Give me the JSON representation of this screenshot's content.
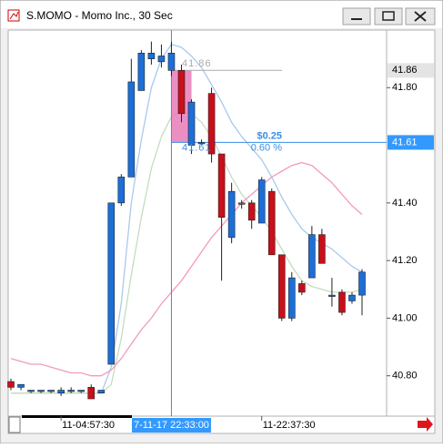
{
  "window_title": "S.MOMO - Momo Inc., 30 Sec",
  "chart_data": {
    "type": "candlestick",
    "categories": [
      null,
      null,
      null,
      null,
      null,
      "11-04:57:30",
      null,
      null,
      null,
      null,
      null,
      null,
      null,
      null,
      null,
      null,
      "7-11-17 22:33:00",
      null,
      null,
      null,
      null,
      null,
      null,
      null,
      null,
      "11-22:37:30",
      null,
      null,
      null,
      null,
      null,
      null,
      null,
      null,
      null,
      null
    ],
    "highlight_category": 16,
    "open": [
      40.78,
      40.76,
      40.75,
      40.75,
      40.75,
      40.74,
      40.75,
      40.75,
      40.76,
      40.74,
      40.84,
      41.4,
      41.49,
      41.79,
      41.9,
      41.89,
      41.86,
      41.86,
      41.6,
      41.61,
      41.78,
      41.57,
      41.28,
      41.4,
      41.4,
      41.33,
      41.44,
      41.22,
      41.0,
      41.12,
      41.14,
      41.29,
      41.08,
      41.09,
      41.06,
      41.08
    ],
    "high": [
      40.79,
      40.77,
      40.75,
      40.75,
      40.75,
      40.76,
      40.76,
      40.75,
      40.77,
      40.75,
      41.4,
      41.5,
      41.9,
      41.93,
      41.96,
      41.95,
      41.96,
      41.88,
      41.76,
      41.62,
      41.8,
      41.57,
      41.47,
      41.41,
      41.41,
      41.49,
      41.45,
      41.22,
      41.16,
      41.13,
      41.32,
      41.31,
      41.14,
      41.1,
      41.09,
      41.17
    ],
    "low": [
      40.75,
      40.75,
      40.74,
      40.74,
      40.74,
      40.73,
      40.74,
      40.74,
      40.72,
      40.74,
      40.84,
      41.39,
      41.49,
      41.79,
      41.88,
      41.87,
      41.84,
      41.68,
      41.57,
      41.6,
      41.54,
      41.13,
      41.26,
      41.38,
      41.31,
      41.33,
      41.22,
      40.99,
      40.99,
      41.08,
      41.14,
      41.19,
      41.04,
      41.01,
      41.05,
      41.01
    ],
    "close": [
      40.76,
      40.77,
      40.75,
      40.75,
      40.75,
      40.75,
      40.75,
      40.75,
      40.72,
      40.75,
      41.4,
      41.49,
      41.82,
      41.92,
      41.92,
      41.91,
      41.92,
      41.71,
      41.75,
      41.61,
      41.57,
      41.35,
      41.44,
      41.4,
      41.34,
      41.48,
      41.22,
      41.0,
      41.14,
      41.09,
      41.29,
      41.19,
      41.08,
      41.02,
      41.08,
      41.16
    ],
    "up_color": "#1d6fd8",
    "down_color": "#c8101a",
    "lines": [
      {
        "color": "#a9c9ee",
        "values": [
          40.74,
          40.74,
          40.74,
          40.74,
          40.74,
          40.74,
          40.74,
          40.74,
          40.74,
          40.74,
          40.83,
          41.05,
          41.4,
          41.62,
          41.8,
          41.9,
          41.95,
          41.94,
          41.91,
          41.87,
          41.81,
          41.75,
          41.68,
          41.63,
          41.59,
          41.55,
          41.49,
          41.42,
          41.36,
          41.31,
          41.28,
          41.26,
          41.24,
          41.21,
          41.18,
          41.16
        ]
      },
      {
        "color": "#c5dcc0",
        "values": [
          40.74,
          40.74,
          40.74,
          40.74,
          40.74,
          40.74,
          40.74,
          40.74,
          40.74,
          40.74,
          40.77,
          40.93,
          41.15,
          41.35,
          41.52,
          41.63,
          41.7,
          41.72,
          41.71,
          41.68,
          41.63,
          41.56,
          41.49,
          41.43,
          41.39,
          41.35,
          41.3,
          41.24,
          41.18,
          41.13,
          41.11,
          41.1,
          41.09,
          41.09,
          41.09,
          41.1
        ]
      },
      {
        "color": "#f29ac0",
        "values": [
          40.86,
          40.85,
          40.84,
          40.84,
          40.83,
          40.82,
          40.81,
          40.81,
          40.8,
          40.8,
          40.82,
          40.86,
          40.91,
          40.96,
          41.0,
          41.05,
          41.09,
          41.13,
          41.18,
          41.23,
          41.28,
          41.32,
          41.36,
          41.4,
          41.43,
          41.46,
          41.49,
          41.51,
          41.53,
          41.54,
          41.53,
          41.5,
          41.47,
          41.43,
          41.39,
          41.36
        ]
      }
    ],
    "ylim": [
      40.66,
      42.0
    ],
    "yticks": [
      {
        "value": 40.8,
        "label": "40.80"
      },
      {
        "value": 41.0,
        "label": "41.00"
      },
      {
        "value": 41.2,
        "label": "41.20"
      },
      {
        "value": 41.4,
        "label": "41.40"
      },
      {
        "value": 41.8,
        "label": "41.80"
      }
    ],
    "measure": {
      "from": 41.86,
      "to": 41.61,
      "change": "$0.25",
      "percent": "0.60 %",
      "fill": "#e87bb8"
    }
  }
}
